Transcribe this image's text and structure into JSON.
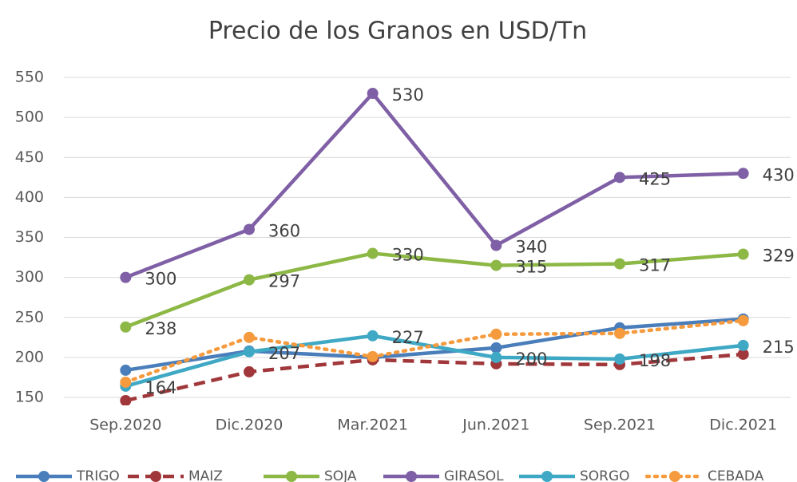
{
  "chart_data": {
    "type": "line",
    "title": "Precio de los Granos en USD/Tn",
    "categories": [
      "Sep.2020",
      "Dic.2020",
      "Mar.2021",
      "Jun.2021",
      "Sep.2021",
      "Dic.2021"
    ],
    "series": [
      {
        "name": "TRIGO",
        "color": "#4a7ebb",
        "dash": "solid",
        "data_labels": false,
        "values": [
          184,
          208,
          200,
          212,
          237,
          248
        ]
      },
      {
        "name": "MAIZ",
        "color": "#a0373a",
        "dash": "dashed",
        "data_labels": false,
        "values": [
          146,
          182,
          197,
          192,
          191,
          204
        ]
      },
      {
        "name": "SOJA",
        "color": "#8db846",
        "dash": "solid",
        "data_labels": true,
        "values": [
          238,
          297,
          330,
          315,
          317,
          329
        ]
      },
      {
        "name": "GIRASOL",
        "color": "#7f5fa5",
        "dash": "solid",
        "data_labels": true,
        "values": [
          300,
          360,
          530,
          340,
          425,
          430
        ]
      },
      {
        "name": "SORGO",
        "color": "#3fa9c5",
        "dash": "solid",
        "data_labels": true,
        "values": [
          164,
          207,
          227,
          200,
          198,
          215
        ]
      },
      {
        "name": "CEBADA",
        "color": "#f59a3d",
        "dash": "dotted",
        "data_labels": false,
        "values": [
          169,
          225,
          201,
          229,
          230,
          246
        ]
      }
    ],
    "ylim": [
      150,
      550
    ],
    "yticks": [
      150,
      200,
      250,
      300,
      350,
      400,
      450,
      500,
      550
    ],
    "grid": true,
    "legend": "bottom"
  }
}
